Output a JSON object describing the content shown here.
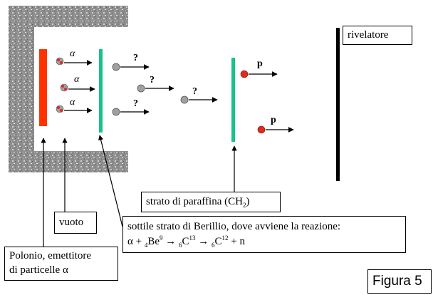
{
  "labels": {
    "rivelatore": "rivelatore",
    "alpha": "α",
    "unknown": "?",
    "proton": "p",
    "vuoto": "vuoto",
    "polonio_line1": "Polonio, emettitore",
    "polonio_line2": "di particelle α",
    "paraffina": "strato di paraffina (CH",
    "paraffina_sub": "2",
    "paraffina_end": ")",
    "berillio_line1": "sottile strato di Berillio,  dove avviene la reazione:",
    "reaction": {
      "alpha": "α",
      "plus1": " + ",
      "be_sub": "4",
      "be": "Be",
      "be_sup": "9",
      "arrow1": " → ",
      "c13_sub": "6",
      "c13": "C",
      "c13_sup": "13",
      "arrow2": " → ",
      "c12_sub": "6",
      "c12": "C",
      "c12_sup": "12",
      "plus_n": " + n"
    },
    "figura": "Figura 5"
  },
  "colors": {
    "polonium": "#ff3300",
    "beryllium": "#19c28a",
    "paraffin": "#19c28a",
    "detector": "#000000",
    "neutral_particle": "#a0a0a0",
    "proton_particle": "#e02a1a",
    "shield": "#9a9a9a"
  }
}
